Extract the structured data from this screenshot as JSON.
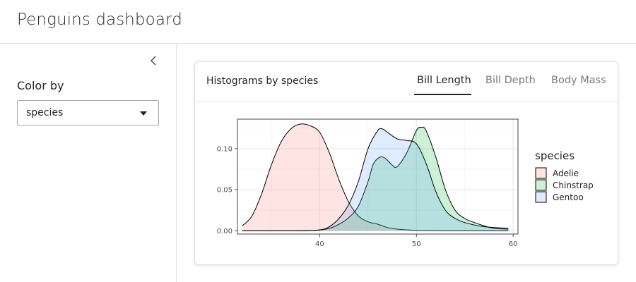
{
  "header": {
    "title": "Penguins dashboard"
  },
  "sidebar": {
    "collapse_icon": "chevron-left-icon",
    "color_by_label": "Color by",
    "select": {
      "value": "species",
      "icon": "caret-down-icon"
    }
  },
  "card": {
    "title": "Histograms by species",
    "tabs": [
      {
        "label": "Bill Length",
        "active": true
      },
      {
        "label": "Bill Depth",
        "active": false
      },
      {
        "label": "Body Mass",
        "active": false
      }
    ]
  },
  "chart_data": {
    "type": "area",
    "xlim": [
      31.5,
      60.5
    ],
    "ylim": [
      -0.004,
      0.136
    ],
    "x_ticks": [
      40,
      50,
      60
    ],
    "y_ticks": [
      0.0,
      0.05,
      0.1
    ],
    "y_tick_labels": [
      "0.00",
      "0.05",
      "0.10"
    ],
    "grid": true,
    "legend": {
      "title": "species",
      "position": "right"
    },
    "series": [
      {
        "name": "Adelie",
        "fill": "#F8766D",
        "opacity": 0.2,
        "x": [
          32,
          33,
          34,
          35,
          36,
          37,
          38,
          39,
          40,
          41,
          42,
          43,
          44,
          45,
          46,
          47,
          48,
          50,
          52,
          54,
          56,
          58,
          59.5
        ],
        "y": [
          0.006,
          0.018,
          0.045,
          0.08,
          0.108,
          0.124,
          0.13,
          0.128,
          0.12,
          0.095,
          0.062,
          0.035,
          0.018,
          0.011,
          0.008,
          0.004,
          0.002,
          0.0005,
          0.0002,
          0.0001,
          0,
          0,
          0
        ]
      },
      {
        "name": "Chinstrap",
        "fill": "#00BA38",
        "opacity": 0.2,
        "x": [
          32,
          38,
          40,
          41,
          42,
          43,
          44,
          45,
          45.5,
          46,
          46.5,
          47,
          47.5,
          48,
          49,
          50,
          50.5,
          51,
          52,
          53,
          54,
          55,
          56,
          57,
          58,
          59.5
        ],
        "y": [
          0,
          0,
          0.001,
          0.003,
          0.008,
          0.016,
          0.03,
          0.06,
          0.08,
          0.088,
          0.09,
          0.086,
          0.08,
          0.078,
          0.095,
          0.122,
          0.126,
          0.122,
          0.09,
          0.05,
          0.025,
          0.015,
          0.01,
          0.006,
          0.003,
          0.002
        ]
      },
      {
        "name": "Gentoo",
        "fill": "#619CFF",
        "opacity": 0.2,
        "x": [
          32,
          38,
          40,
          41,
          42,
          43,
          44,
          45,
          46,
          46.5,
          47,
          48,
          49,
          50,
          51,
          52,
          53,
          54,
          55,
          56,
          57,
          58,
          59.5
        ],
        "y": [
          0,
          0,
          0.001,
          0.005,
          0.015,
          0.032,
          0.06,
          0.1,
          0.122,
          0.124,
          0.12,
          0.112,
          0.11,
          0.106,
          0.082,
          0.048,
          0.025,
          0.015,
          0.01,
          0.007,
          0.005,
          0.004,
          0.003
        ]
      }
    ]
  }
}
